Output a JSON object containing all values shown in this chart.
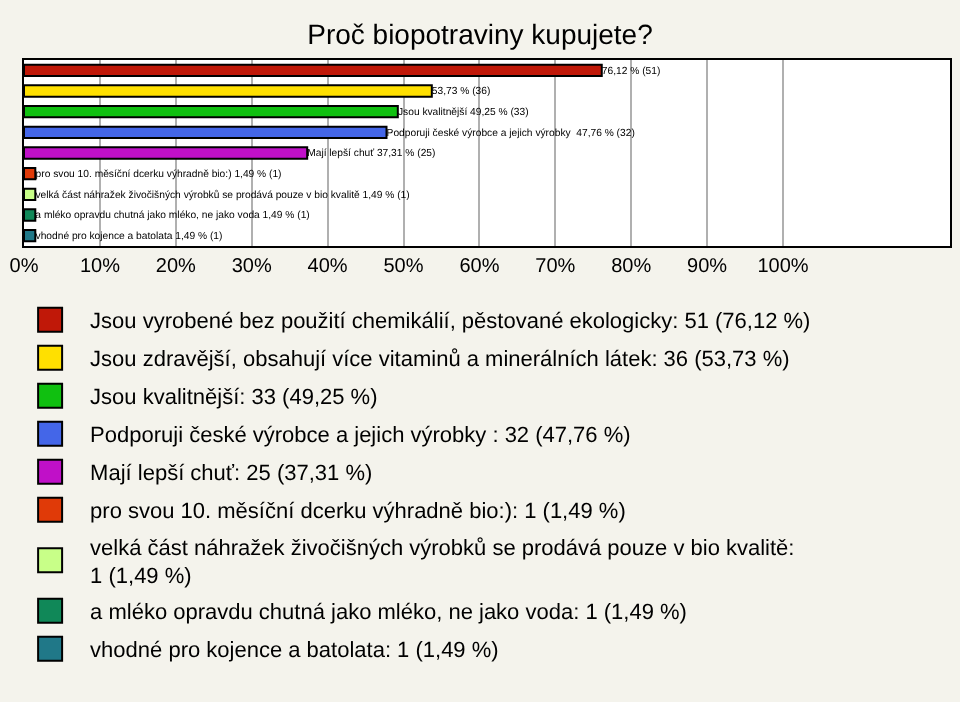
{
  "chart_data": {
    "type": "bar",
    "title": "Proč biopotraviny kupujete?",
    "orientation": "horizontal",
    "categories": [
      null,
      null,
      null,
      null,
      null,
      null,
      null,
      null,
      null
    ],
    "series": [
      {
        "name": "Jsou vyrobené bez použití chemikálií, pěstované ekologicky: 51 (76,12 %)",
        "color": "#c01808",
        "values": [
          76.12,
          null,
          null,
          null,
          null,
          null,
          null,
          null,
          null
        ],
        "value_labels": [
          "76,12 % (51)",
          null,
          null,
          null,
          null,
          null,
          null,
          null,
          null
        ]
      },
      {
        "name": "Jsou zdravější, obsahují více vitaminů a minerálních látek: 36 (53,73 %)",
        "color": "#ffe000",
        "values": [
          null,
          53.73,
          null,
          null,
          null,
          null,
          null,
          null,
          null
        ],
        "value_labels": [
          null,
          "53,73 % (36)",
          null,
          null,
          null,
          null,
          null,
          null,
          null
        ]
      },
      {
        "name": "Jsou kvalitnější: 33 (49,25 %)",
        "color": "#10c010",
        "values": [
          null,
          null,
          49.25,
          null,
          null,
          null,
          null,
          null,
          null
        ],
        "value_labels": [
          null,
          null,
          "Jsou kvalitnější 49,25 % (33)",
          null,
          null,
          null,
          null,
          null,
          null
        ]
      },
      {
        "name": "Podporuji české výrobce a jejich výrobky : 32 (47,76 %)",
        "color": "#4466e8",
        "values": [
          null,
          null,
          null,
          47.76,
          null,
          null,
          null,
          null,
          null
        ],
        "value_labels": [
          null,
          null,
          null,
          "Podporuji české výrobce a jejich výrobky  47,76 % (32)",
          null,
          null,
          null,
          null,
          null
        ]
      },
      {
        "name": "Mají lepší chuť: 25 (37,31 %)",
        "color": "#c010c8",
        "values": [
          null,
          null,
          null,
          null,
          37.31,
          null,
          null,
          null,
          null
        ],
        "value_labels": [
          null,
          null,
          null,
          null,
          "Mají lepší chuť 37,31 % (25)",
          null,
          null,
          null,
          null
        ]
      },
      {
        "name": "pro svou 10. měsíční dcerku výhradně bio:): 1 (1,49 %)",
        "color": "#e03a08",
        "values": [
          null,
          null,
          null,
          null,
          null,
          1.49,
          null,
          null,
          null
        ],
        "value_labels": [
          null,
          null,
          null,
          null,
          null,
          "pro svou 10. měsíční dcerku výhradně bio:) 1,49 % (1)",
          null,
          null,
          null
        ]
      },
      {
        "name": "velká část náhražek živočišných výrobků se prodává pouze v bio kvalitě: 1 (1,49 %)",
        "color": "#c8ff88",
        "values": [
          null,
          null,
          null,
          null,
          null,
          null,
          1.49,
          null,
          null
        ],
        "value_labels": [
          null,
          null,
          null,
          null,
          null,
          null,
          "velká část náhražek živočišných výrobků se prodává pouze v bio kvalitě 1,49 % (1)",
          null,
          null
        ]
      },
      {
        "name": "a mléko opravdu chutná jako mléko, ne jako voda: 1 (1,49 %)",
        "color": "#108858",
        "values": [
          null,
          null,
          null,
          null,
          null,
          null,
          null,
          1.49,
          null
        ],
        "value_labels": [
          null,
          null,
          null,
          null,
          null,
          null,
          null,
          "a mléko opravdu chutná jako mléko, ne jako voda 1,49 % (1)",
          null
        ]
      },
      {
        "name": "vhodné pro kojence a batolata: 1 (1,49 %)",
        "color": "#207888",
        "values": [
          null,
          null,
          null,
          null,
          null,
          null,
          null,
          null,
          1.49
        ],
        "value_labels": [
          null,
          null,
          null,
          null,
          null,
          null,
          null,
          null,
          "vhodné pro kojence a batolata 1,49 % (1)"
        ]
      }
    ],
    "xlim": [
      0,
      122
    ],
    "xticks": [
      {
        "value": 0,
        "label": "0%"
      },
      {
        "value": 10,
        "label": "10%"
      },
      {
        "value": 20,
        "label": "20%"
      },
      {
        "value": 30,
        "label": "30%"
      },
      {
        "value": 40,
        "label": "40%"
      },
      {
        "value": 50,
        "label": "50%"
      },
      {
        "value": 60,
        "label": "60%"
      },
      {
        "value": 70,
        "label": "70%"
      },
      {
        "value": 80,
        "label": "80%"
      },
      {
        "value": 90,
        "label": "90%"
      },
      {
        "value": 100,
        "label": "100%"
      }
    ],
    "grid": "x",
    "legend": "bottom",
    "tick_labels": "x"
  }
}
